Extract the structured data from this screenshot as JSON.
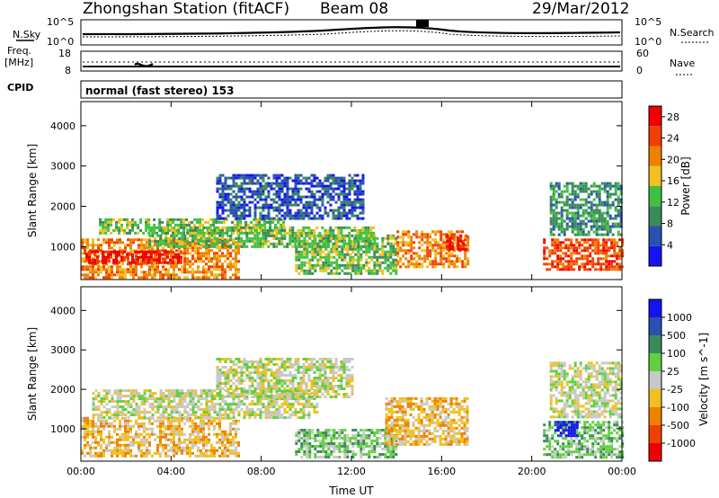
{
  "header": {
    "title": "Zhongshan Station (fitACF)",
    "beam": "Beam 08",
    "date": "29/Mar/2012"
  },
  "strip_sky": {
    "left_label": "N.Sky",
    "right_label": "N.Search",
    "left_ticks": [
      "10^5",
      "10^0"
    ],
    "right_ticks": [
      "10^5",
      "10^0"
    ]
  },
  "strip_freq": {
    "left_label_1": "Freq.",
    "left_label_2": "[MHz]",
    "right_label": "Nave",
    "left_ticks": [
      "18",
      "8"
    ],
    "right_ticks": [
      "60",
      "0"
    ]
  },
  "cpid": {
    "label": "CPID",
    "mode": "normal (fast stereo) 153"
  },
  "colors": {
    "power": [
      "#1414f0",
      "#2a50b0",
      "#3a8a5a",
      "#40c040",
      "#f0c020",
      "#f08000",
      "#f04000",
      "#f00000"
    ],
    "velocity": [
      "#f00000",
      "#f04000",
      "#f08000",
      "#f0c020",
      "#c8c8c8",
      "#60d040",
      "#3a8a5a",
      "#2a50b0",
      "#1414f0"
    ]
  },
  "chart_data": [
    {
      "type": "heatmap",
      "title": "",
      "xlabel": "",
      "ylabel": "Slant Range [km]",
      "xlim": [
        0,
        24
      ],
      "ylim": [
        180,
        4600
      ],
      "yticks": [
        "1000",
        "2000",
        "3000",
        "4000"
      ],
      "xticks": [
        "00:00",
        "04:00",
        "08:00",
        "12:00",
        "16:00",
        "20:00",
        "00:00"
      ],
      "colorbar": {
        "label": "Power [dB]",
        "ticks": [
          "4",
          "8",
          "12",
          "16",
          "20",
          "24",
          "28"
        ],
        "range": [
          0,
          30
        ]
      },
      "regions": [
        {
          "t": [
            0.0,
            7.0
          ],
          "r": [
            200,
            1200
          ],
          "value": 22
        },
        {
          "t": [
            0.2,
            4.5
          ],
          "r": [
            600,
            900
          ],
          "value": 28
        },
        {
          "t": [
            0.8,
            9.0
          ],
          "r": [
            1300,
            1700
          ],
          "value": 12
        },
        {
          "t": [
            6.0,
            12.5
          ],
          "r": [
            1700,
            2800
          ],
          "value": 6
        },
        {
          "t": [
            3.0,
            13.0
          ],
          "r": [
            1000,
            1500
          ],
          "value": 14
        },
        {
          "t": [
            9.5,
            14.0
          ],
          "r": [
            300,
            1300
          ],
          "value": 12
        },
        {
          "t": [
            14.0,
            17.2
          ],
          "r": [
            500,
            1400
          ],
          "value": 22
        },
        {
          "t": [
            16.2,
            17.1
          ],
          "r": [
            900,
            1300
          ],
          "value": 28
        },
        {
          "t": [
            20.5,
            24.0
          ],
          "r": [
            400,
            1200
          ],
          "value": 24
        },
        {
          "t": [
            20.8,
            24.0
          ],
          "r": [
            1300,
            2600
          ],
          "value": 8
        }
      ]
    },
    {
      "type": "heatmap",
      "title": "",
      "xlabel": "Time UT",
      "ylabel": "Slant Range [km]",
      "xlim": [
        0,
        24
      ],
      "ylim": [
        180,
        4600
      ],
      "yticks": [
        "1000",
        "2000",
        "3000",
        "4000"
      ],
      "xticks": [
        "00:00",
        "04:00",
        "08:00",
        "12:00",
        "16:00",
        "20:00",
        "00:00"
      ],
      "colorbar": {
        "label": "Velocity [m s^-1]",
        "ticks": [
          "1000",
          "500",
          "100",
          "25",
          "-25",
          "-100",
          "-500",
          "-1000"
        ],
        "range": [
          -1000,
          1000
        ]
      },
      "regions": [
        {
          "t": [
            0.0,
            7.0
          ],
          "r": [
            300,
            1300
          ],
          "value": -300
        },
        {
          "t": [
            0.5,
            10.5
          ],
          "r": [
            1300,
            2000
          ],
          "value": 0
        },
        {
          "t": [
            6.0,
            12.0
          ],
          "r": [
            1800,
            2800
          ],
          "value": 0
        },
        {
          "t": [
            9.5,
            14.0
          ],
          "r": [
            300,
            1000
          ],
          "value": 200
        },
        {
          "t": [
            13.5,
            17.2
          ],
          "r": [
            600,
            1800
          ],
          "value": -300
        },
        {
          "t": [
            20.5,
            24.0
          ],
          "r": [
            300,
            1200
          ],
          "value": 200
        },
        {
          "t": [
            21.0,
            22.0
          ],
          "r": [
            800,
            1200
          ],
          "value": 900
        },
        {
          "t": [
            20.8,
            24.0
          ],
          "r": [
            1300,
            2700
          ],
          "value": 0
        }
      ]
    }
  ]
}
